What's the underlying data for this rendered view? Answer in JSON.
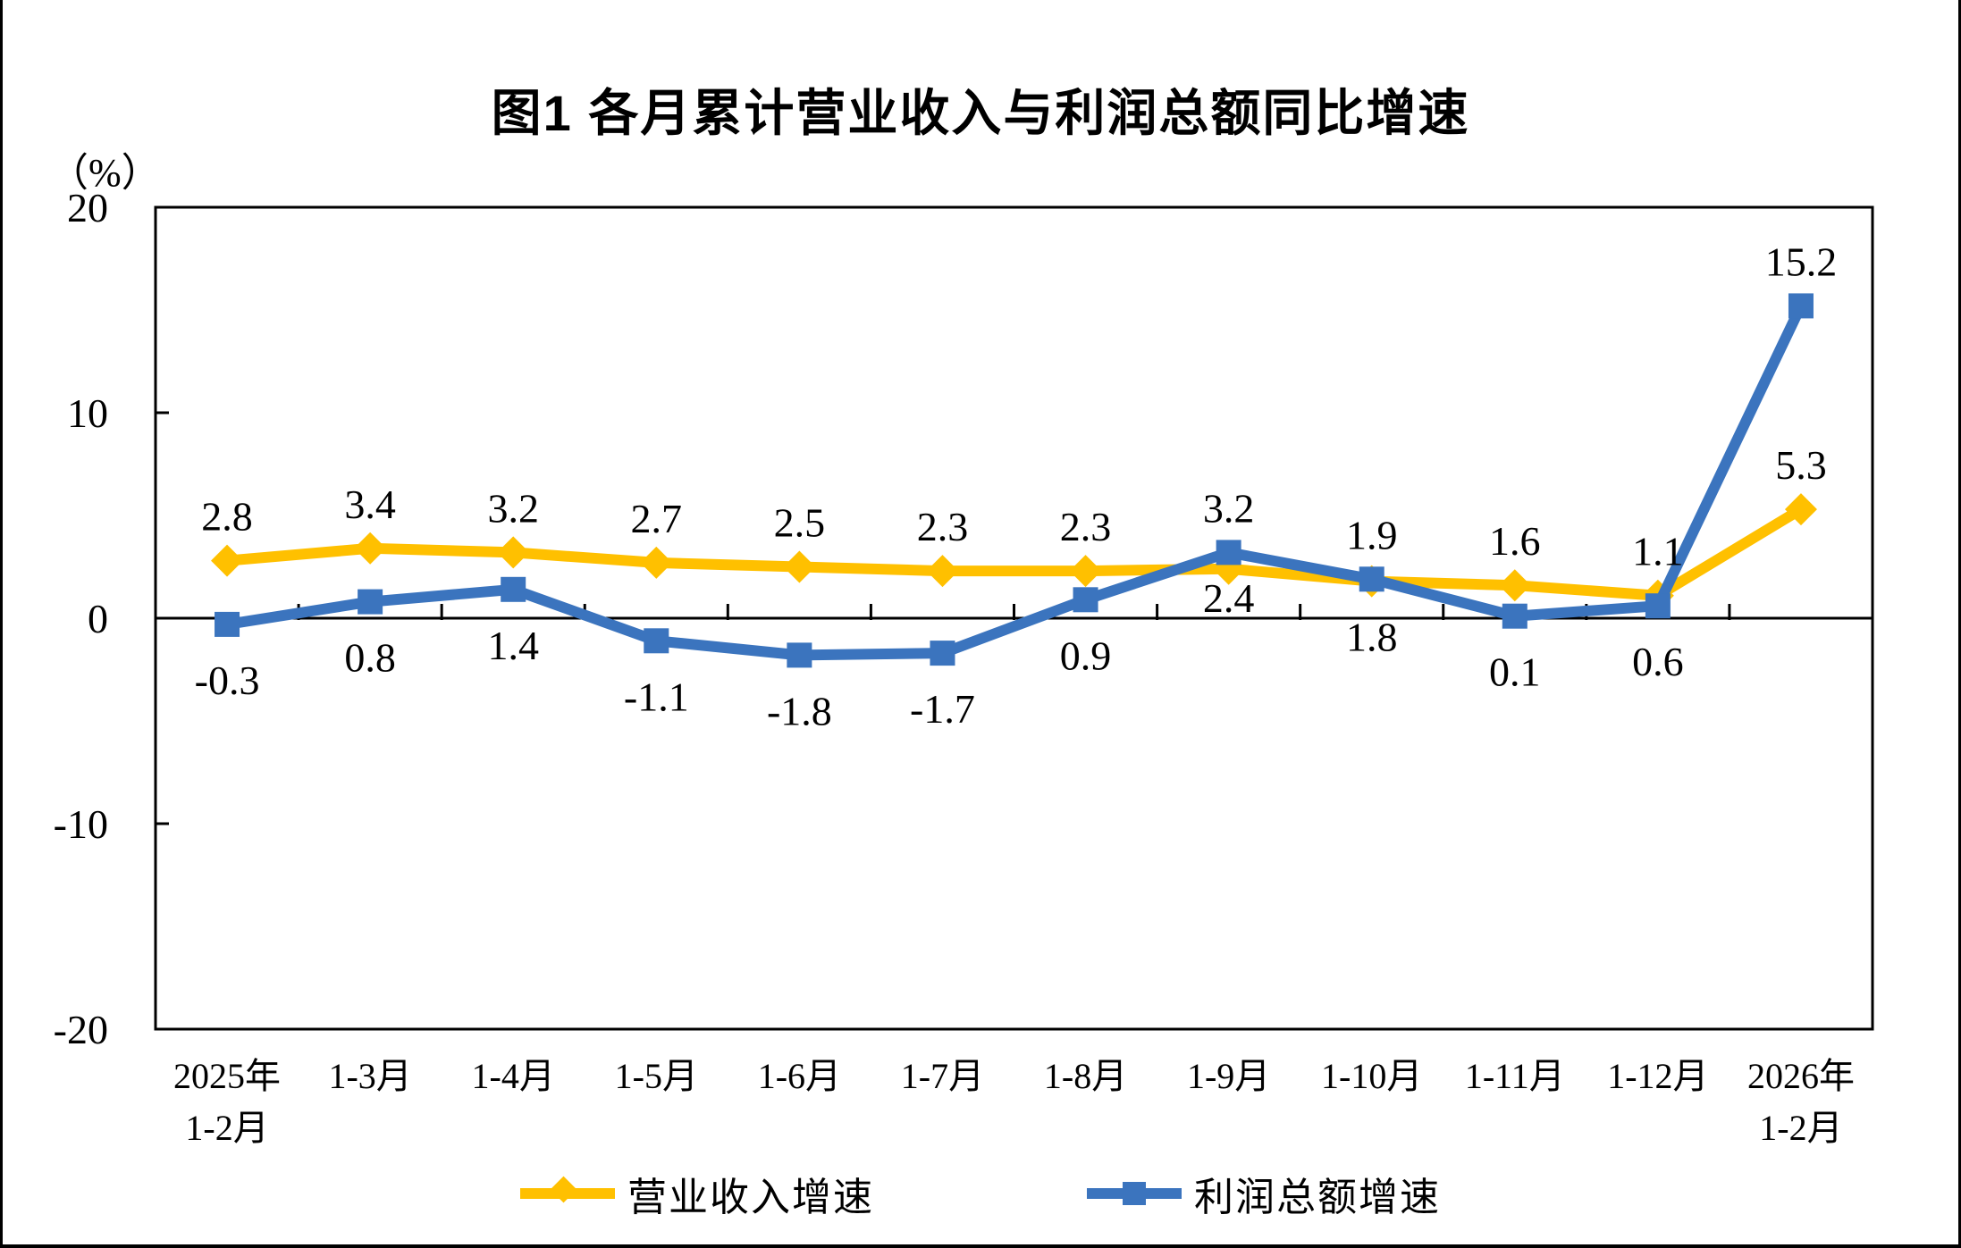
{
  "figure": {
    "title": "图1 各月累计营业收入与利润总额同比增速",
    "unit_label": "（%）"
  },
  "chart_data": {
    "type": "line",
    "title": "图1 各月累计营业收入与利润总额同比增速",
    "ylabel": "（%）",
    "ylim": [
      -20,
      20
    ],
    "yticks": [
      20,
      10,
      0,
      -10,
      -20
    ],
    "grid": false,
    "axis_line_at_y": 0,
    "legend_position": "bottom",
    "categories": [
      [
        "2025年",
        "1-2月"
      ],
      [
        "1-3月"
      ],
      [
        "1-4月"
      ],
      [
        "1-5月"
      ],
      [
        "1-6月"
      ],
      [
        "1-7月"
      ],
      [
        "1-8月"
      ],
      [
        "1-9月"
      ],
      [
        "1-10月"
      ],
      [
        "1-11月"
      ],
      [
        "1-12月"
      ],
      [
        "2026年",
        "1-2月"
      ]
    ],
    "series": [
      {
        "name": "营业收入增速",
        "color": "#FFC000",
        "marker": "diamond",
        "values": [
          2.8,
          3.4,
          3.2,
          2.7,
          2.5,
          2.3,
          2.3,
          2.4,
          1.8,
          1.6,
          1.1,
          5.3
        ],
        "labels": [
          "2.8",
          "3.4",
          "3.2",
          "2.7",
          "2.5",
          "2.3",
          "2.3",
          "2.4",
          "1.8",
          "1.6",
          "1.1",
          "5.3"
        ],
        "label_placement": [
          "above",
          "above",
          "above",
          "above",
          "above",
          "above",
          "above",
          "below_tight",
          "below",
          "above",
          "above",
          "above"
        ]
      },
      {
        "name": "利润总额增速",
        "color": "#3B74BE",
        "marker": "square",
        "values": [
          -0.3,
          0.8,
          1.4,
          -1.1,
          -1.8,
          -1.7,
          0.9,
          3.2,
          1.9,
          0.1,
          0.6,
          15.2
        ],
        "labels": [
          "-0.3",
          "0.8",
          "1.4",
          "-1.1",
          "-1.8",
          "-1.7",
          "0.9",
          "3.2",
          "1.9",
          "0.1",
          "0.6",
          "15.2"
        ],
        "label_placement": [
          "below",
          "below",
          "below",
          "below",
          "below",
          "below",
          "below",
          "above",
          "above",
          "below",
          "below",
          "above"
        ]
      }
    ]
  }
}
